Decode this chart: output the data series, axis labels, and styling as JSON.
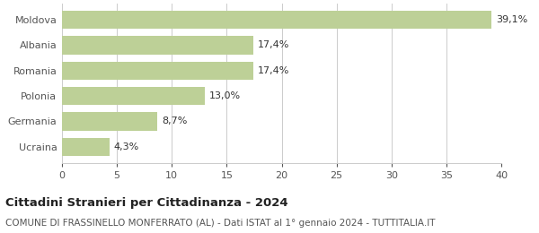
{
  "categories": [
    "Ucraina",
    "Germania",
    "Polonia",
    "Romania",
    "Albania",
    "Moldova"
  ],
  "values": [
    4.3,
    8.7,
    13.0,
    17.4,
    17.4,
    39.1
  ],
  "labels": [
    "4,3%",
    "8,7%",
    "13,0%",
    "17,4%",
    "17,4%",
    "39,1%"
  ],
  "bar_color": "#bdd097",
  "xlim": [
    0,
    40
  ],
  "xticks": [
    0,
    5,
    10,
    15,
    20,
    25,
    30,
    35,
    40
  ],
  "title": "Cittadini Stranieri per Cittadinanza - 2024",
  "subtitle": "COMUNE DI FRASSINELLO MONFERRATO (AL) - Dati ISTAT al 1° gennaio 2024 - TUTTITALIA.IT",
  "title_fontsize": 9.5,
  "subtitle_fontsize": 7.5,
  "label_fontsize": 8,
  "tick_fontsize": 8,
  "background_color": "#ffffff",
  "grid_color": "#cccccc"
}
